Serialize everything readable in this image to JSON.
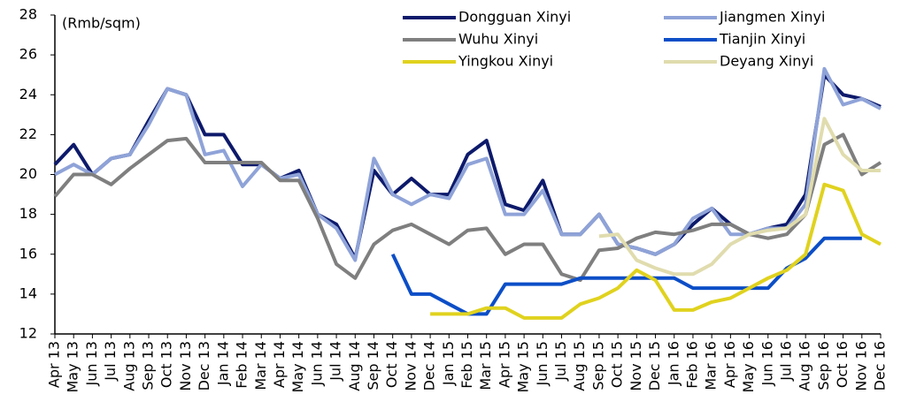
{
  "chart_data": {
    "type": "line",
    "y_label": "(Rmb/sqm)",
    "categories": [
      "Apr 13",
      "May 13",
      "Jun 13",
      "Jul 13",
      "Aug 13",
      "Sep 13",
      "Oct 13",
      "Nov 13",
      "Dec 13",
      "Jan 14",
      "Feb 14",
      "Mar 14",
      "Apr 14",
      "May 14",
      "Jun 14",
      "Jul 14",
      "Aug 14",
      "Sep 14",
      "Oct 14",
      "Nov 14",
      "Dec 14",
      "Jan 15",
      "Feb 15",
      "Mar 15",
      "Apr 15",
      "May 15",
      "Jun 15",
      "Jul 15",
      "Aug 15",
      "Sep 15",
      "Oct 15",
      "Nov 15",
      "Dec 15",
      "Jan 16",
      "Feb 16",
      "Mar 16",
      "Apr 16",
      "May 16",
      "Jun 16",
      "Jul 16",
      "Aug 16",
      "Sep 16",
      "Oct 16",
      "Nov 16",
      "Dec 16"
    ],
    "series": [
      {
        "name": "Dongguan Xinyi",
        "color": "#0d1a6b",
        "values": [
          20.5,
          21.5,
          20,
          20.8,
          21,
          22.7,
          24.3,
          24,
          22,
          22,
          20.5,
          20.5,
          19.8,
          20.2,
          18,
          17.5,
          15.8,
          20.2,
          19,
          19.8,
          19,
          19,
          21,
          21.7,
          18.5,
          18.2,
          19.7,
          17,
          17,
          18,
          16.5,
          16.3,
          16,
          16.5,
          17.5,
          18.3,
          17.5,
          17,
          17.3,
          17.5,
          19,
          25,
          24,
          23.8,
          23.4
        ]
      },
      {
        "name": "Jiangmen Xinyi",
        "color": "#8fa3d8",
        "values": [
          20,
          20.5,
          20,
          20.8,
          21,
          22.5,
          24.3,
          24,
          21,
          21.2,
          19.4,
          20.5,
          19.8,
          20,
          18,
          17.3,
          15.7,
          20.8,
          19,
          18.5,
          19,
          18.8,
          20.5,
          20.8,
          18,
          18,
          19.2,
          17,
          17,
          18,
          16.5,
          16.3,
          16,
          16.5,
          17.8,
          18.3,
          17,
          17,
          17.3,
          17.3,
          18.5,
          25.3,
          23.5,
          23.8,
          23.3
        ]
      },
      {
        "name": "Wuhu Xinyi",
        "color": "#7f7f7f",
        "values": [
          18.9,
          20,
          20,
          19.5,
          20.3,
          21,
          21.7,
          21.8,
          20.6,
          20.6,
          20.6,
          20.6,
          19.7,
          19.7,
          17.8,
          15.5,
          14.8,
          16.5,
          17.2,
          17.5,
          17,
          16.5,
          17.2,
          17.3,
          16,
          16.5,
          16.5,
          15,
          14.7,
          16.2,
          16.3,
          16.8,
          17.1,
          17,
          17.2,
          17.5,
          17.5,
          17,
          16.8,
          17,
          18,
          21.5,
          22,
          20,
          20.6
        ]
      },
      {
        "name": "Tianjin Xinyi",
        "color": "#0c4ec7",
        "values": [
          null,
          null,
          null,
          null,
          null,
          null,
          null,
          null,
          null,
          null,
          null,
          null,
          null,
          null,
          null,
          null,
          null,
          null,
          16,
          14,
          14,
          13.5,
          13,
          13,
          14.5,
          14.5,
          14.5,
          14.5,
          14.8,
          14.8,
          14.8,
          14.8,
          14.8,
          14.8,
          14.3,
          14.3,
          14.3,
          14.3,
          14.3,
          15.3,
          15.8,
          16.8,
          16.8,
          16.8,
          null
        ]
      },
      {
        "name": "Yingkou Xinyi",
        "color": "#e0d21e",
        "values": [
          null,
          null,
          null,
          null,
          null,
          null,
          null,
          null,
          null,
          null,
          null,
          null,
          null,
          null,
          null,
          null,
          null,
          null,
          null,
          null,
          13,
          13,
          13,
          13.3,
          13.3,
          12.8,
          12.8,
          12.8,
          13.5,
          13.8,
          14.3,
          15.2,
          14.7,
          13.2,
          13.2,
          13.6,
          13.8,
          14.3,
          14.8,
          15.2,
          16,
          19.5,
          19.2,
          17,
          16.5
        ]
      },
      {
        "name": "Deyang Xinyi",
        "color": "#e0dcae",
        "values": [
          null,
          null,
          null,
          null,
          null,
          null,
          null,
          null,
          null,
          null,
          null,
          null,
          null,
          null,
          null,
          null,
          null,
          null,
          null,
          null,
          null,
          null,
          null,
          null,
          null,
          null,
          null,
          null,
          null,
          16.9,
          17,
          15.7,
          15.3,
          15,
          15,
          15.5,
          16.5,
          17,
          17.2,
          17.3,
          18,
          22.8,
          21,
          20.2,
          20.2
        ]
      }
    ],
    "ylim": [
      12,
      28
    ],
    "yticks": [
      12,
      14,
      16,
      18,
      20,
      22,
      24,
      26,
      28
    ]
  }
}
